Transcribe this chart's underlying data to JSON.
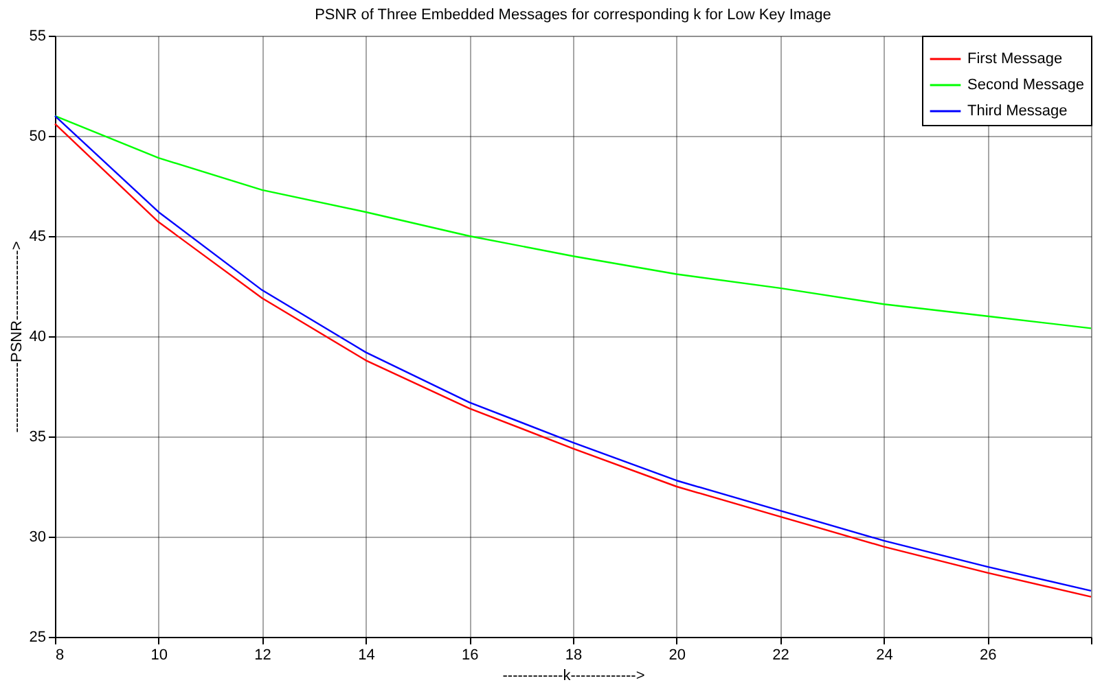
{
  "chart_data": {
    "type": "line",
    "title": "PSNR of Three Embedded Messages for corresponding k for Low Key Image",
    "xlabel": "------------k------------->",
    "ylabel": "--------------PSNR-------------->",
    "x": [
      8,
      10,
      12,
      14,
      16,
      18,
      20,
      22,
      24,
      26,
      28
    ],
    "series": [
      {
        "name": "First Message",
        "color": "#ff0000",
        "values": [
          50.6,
          45.7,
          41.9,
          38.8,
          36.4,
          34.4,
          32.5,
          31.0,
          29.5,
          28.2,
          27.0
        ]
      },
      {
        "name": "Second Message",
        "color": "#00ff00",
        "values": [
          51.0,
          48.9,
          47.3,
          46.2,
          45.0,
          44.0,
          43.1,
          42.4,
          41.6,
          41.0,
          40.4
        ]
      },
      {
        "name": "Third Message",
        "color": "#0000ff",
        "values": [
          51.0,
          46.2,
          42.3,
          39.2,
          36.7,
          34.7,
          32.8,
          31.3,
          29.8,
          28.5,
          27.3
        ]
      }
    ],
    "xlim": [
      8,
      28
    ],
    "xticks": [
      8,
      10,
      12,
      14,
      16,
      18,
      20,
      22,
      24,
      26,
      {
        "value": 28,
        "label": null
      }
    ],
    "ylim": [
      25,
      55
    ],
    "yticks": [
      25,
      30,
      35,
      40,
      45,
      50,
      55
    ],
    "grid": true,
    "legend": "top right",
    "marker": "none",
    "line_style": "solid"
  }
}
